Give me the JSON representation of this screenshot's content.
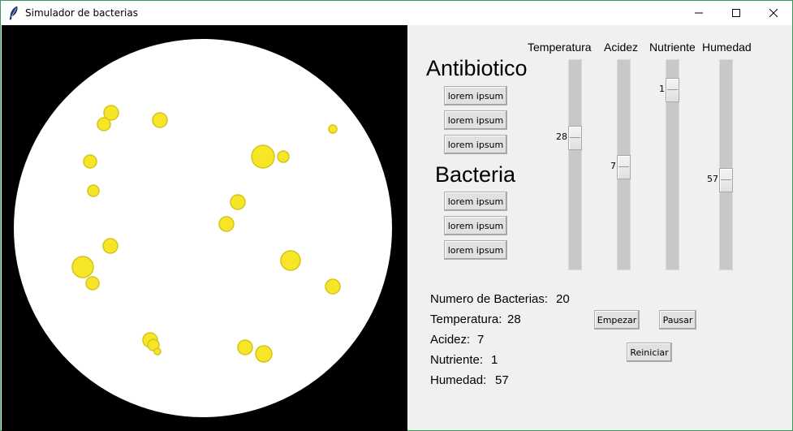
{
  "window": {
    "title": "Simulador de bacterias",
    "icon": "feather-icon"
  },
  "canvas": {
    "background": "#000000",
    "dish_color": "#ffffff",
    "bacteria_color": "#f7e628",
    "bacteria_outline": "#d4c41a"
  },
  "antibiotico": {
    "title": "Antibiotico",
    "buttons": [
      "lorem ipsum",
      "lorem ipsum",
      "lorem ipsum"
    ]
  },
  "bacteria": {
    "title": "Bacteria",
    "buttons": [
      "lorem ipsum",
      "lorem ipsum",
      "lorem ipsum"
    ]
  },
  "sliders": [
    {
      "label": "Temperatura",
      "value": "28",
      "level": 0.34
    },
    {
      "label": "Acidez",
      "value": "7",
      "level": 0.5
    },
    {
      "label": "Nutriente",
      "value": "1",
      "level": 0.08
    },
    {
      "label": "Humedad",
      "value": "57",
      "level": 0.57
    }
  ],
  "stats": {
    "numero_label": "Numero de Bacterias:",
    "numero_value": "20",
    "temperatura_label": "Temperatura:",
    "temperatura_value": "28",
    "acidez_label": "Acidez:",
    "acidez_value": "7",
    "nutriente_label": "Nutriente:",
    "nutriente_value": "1",
    "humedad_label": "Humedad:",
    "humedad_value": "57"
  },
  "controls": {
    "start_label": "Empezar",
    "pause_label": "Pausar",
    "restart_label": "Reiniciar"
  }
}
